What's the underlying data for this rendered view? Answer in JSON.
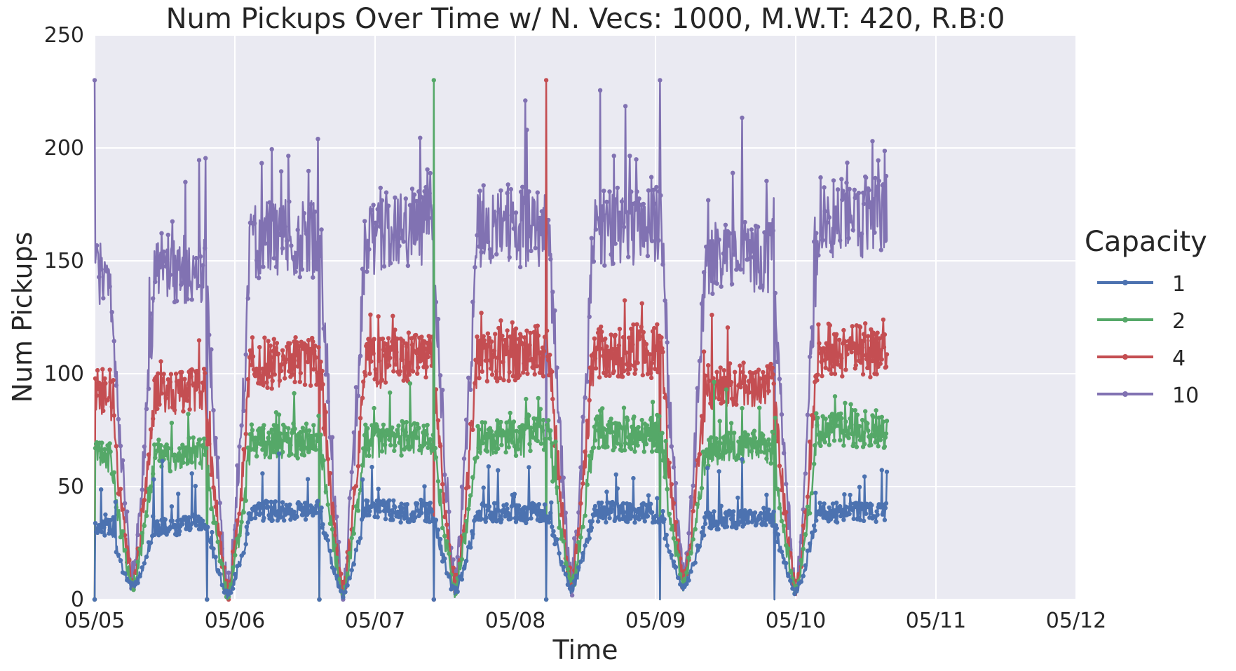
{
  "chart_data": {
    "type": "line",
    "title": "Num Pickups Over Time w/ N. Vecs: 1000, M.W.T: 420, R.B:0",
    "xlabel": "Time",
    "ylabel": "Num Pickups",
    "x_ticks": [
      "05/05",
      "05/06",
      "05/07",
      "05/08",
      "05/09",
      "05/10",
      "05/11",
      "05/12"
    ],
    "y_ticks": [
      0,
      50,
      100,
      150,
      200,
      250
    ],
    "xlim_days": [
      0,
      7
    ],
    "ylim": [
      0,
      250
    ],
    "grid": true,
    "legend_title": "Capacity",
    "legend_position": "right",
    "background_color": "#EAEAF2",
    "series": [
      {
        "name": "1",
        "color": "#4C72B0",
        "daily_max": [
          35,
          40,
          40,
          41,
          38,
          40
        ],
        "peaks": [
          28,
          65
        ],
        "spikes": []
      },
      {
        "name": "2",
        "color": "#55A868",
        "daily_max": [
          65,
          70,
          72,
          75,
          68,
          76
        ],
        "peaks": [
          65,
          95
        ],
        "spikes": [
          {
            "x": 2.42,
            "y": 230
          }
        ]
      },
      {
        "name": "4",
        "color": "#C44E52",
        "daily_max": [
          92,
          104,
          108,
          110,
          95,
          110
        ],
        "peaks": [
          95,
          125
        ],
        "spikes": [
          {
            "x": 3.22,
            "y": 230
          }
        ]
      },
      {
        "name": "10",
        "color": "#8172B2",
        "daily_max": [
          145,
          158,
          163,
          163,
          150,
          168
        ],
        "peaks": [
          180,
          215
        ],
        "spikes": [
          {
            "x": 0.0,
            "y": 230
          },
          {
            "x": 4.03,
            "y": 230
          }
        ]
      }
    ],
    "daily_minima": [
      {
        "day": 0.27,
        "value": 8
      },
      {
        "day": 0.95,
        "value": 3
      },
      {
        "day": 1.77,
        "value": 2
      },
      {
        "day": 2.57,
        "value": 5
      },
      {
        "day": 3.4,
        "value": 7
      },
      {
        "day": 4.2,
        "value": 8
      },
      {
        "day": 5.0,
        "value": 5
      }
    ],
    "data_end_day": 5.65,
    "drop_to_zero_days": [
      0.0,
      0.8,
      1.6,
      2.42,
      3.22,
      4.03,
      4.85
    ]
  }
}
